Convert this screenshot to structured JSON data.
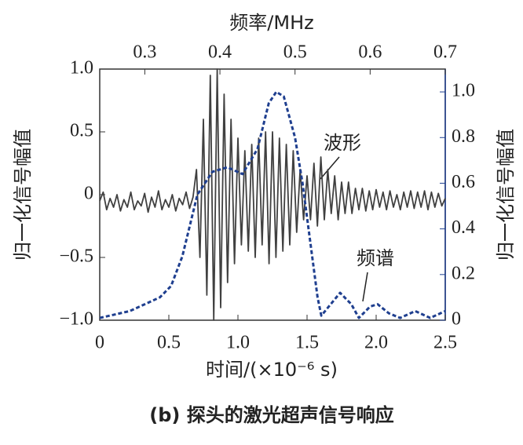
{
  "chart_data": {
    "type": "line",
    "caption": "(b) 探头的激光超声信号响应",
    "xlabel": "时间/(×10⁻⁶ s)",
    "x2label": "频率/MHz",
    "ylabel": "归一化信号幅值",
    "y2label": "归一化信号幅值",
    "xlim": [
      0,
      2.5
    ],
    "xticks": [
      0,
      0.5,
      {
        "value": 1,
        "label": "1.0"
      },
      1.5,
      {
        "value": 2,
        "label": "2.0"
      },
      2.5
    ],
    "x2lim": [
      0.24,
      0.7
    ],
    "x2ticks": [
      0.3,
      0.4,
      0.5,
      0.6,
      0.7
    ],
    "ylim": [
      -1,
      1
    ],
    "yticks": [
      {
        "value": -1,
        "label": "−1.0"
      },
      {
        "value": -0.5,
        "label": "−0.5"
      },
      0,
      0.5,
      {
        "value": 1,
        "label": "1.0"
      }
    ],
    "y2lim": [
      0,
      1.1
    ],
    "y2ticks": [
      0,
      0.2,
      0.4,
      0.6,
      0.8,
      {
        "value": 1,
        "label": "1.0"
      }
    ],
    "series": [
      {
        "name": "波形",
        "color": "#404040",
        "dashed": false,
        "x": [
          0,
          0.025,
          0.05,
          0.075,
          0.1,
          0.125,
          0.15,
          0.175,
          0.2,
          0.225,
          0.25,
          0.275,
          0.3,
          0.325,
          0.35,
          0.375,
          0.4,
          0.425,
          0.45,
          0.475,
          0.5,
          0.525,
          0.55,
          0.575,
          0.6,
          0.625,
          0.65,
          0.675,
          0.7,
          0.725,
          0.75,
          0.775,
          0.8,
          0.825,
          0.85,
          0.875,
          0.9,
          0.925,
          0.95,
          0.975,
          1.0,
          1.025,
          1.05,
          1.075,
          1.1,
          1.125,
          1.15,
          1.175,
          1.2,
          1.225,
          1.25,
          1.275,
          1.3,
          1.325,
          1.35,
          1.375,
          1.4,
          1.425,
          1.45,
          1.475,
          1.5,
          1.525,
          1.55,
          1.575,
          1.6,
          1.625,
          1.65,
          1.675,
          1.7,
          1.725,
          1.75,
          1.775,
          1.8,
          1.825,
          1.85,
          1.875,
          1.9,
          1.925,
          1.95,
          1.975,
          2.0,
          2.025,
          2.05,
          2.075,
          2.1,
          2.125,
          2.15,
          2.175,
          2.2,
          2.225,
          2.25,
          2.275,
          2.3,
          2.325,
          2.35,
          2.375,
          2.4,
          2.425,
          2.45,
          2.475,
          2.5
        ],
        "values": [
          -0.05,
          0.02,
          -0.12,
          -0.03,
          -0.1,
          0.0,
          -0.13,
          -0.04,
          -0.1,
          0.02,
          -0.12,
          -0.05,
          -0.09,
          0.01,
          -0.14,
          -0.02,
          -0.1,
          0.03,
          -0.12,
          -0.04,
          -0.1,
          0.0,
          -0.13,
          -0.03,
          -0.08,
          0.02,
          -0.11,
          -0.02,
          0.2,
          -0.5,
          0.6,
          -0.8,
          0.95,
          -1.0,
          1.0,
          -0.9,
          0.8,
          -0.7,
          0.6,
          -0.55,
          0.45,
          -0.4,
          0.35,
          -0.45,
          0.4,
          -0.5,
          0.45,
          -0.4,
          0.5,
          -0.55,
          0.5,
          -0.5,
          0.45,
          -0.45,
          0.4,
          -0.4,
          0.35,
          -0.3,
          0.2,
          -0.2,
          0.15,
          -0.2,
          0.25,
          -0.25,
          0.3,
          -0.2,
          0.2,
          -0.15,
          0.15,
          -0.2,
          0.1,
          -0.15,
          0.1,
          -0.15,
          0.05,
          -0.12,
          0.05,
          -0.13,
          0.03,
          -0.12,
          0.04,
          -0.1,
          0.02,
          -0.12,
          0.03,
          -0.1,
          0.0,
          -0.12,
          0.02,
          -0.1,
          0.03,
          -0.11,
          0.02,
          -0.1,
          0.03,
          -0.12,
          0.02,
          -0.1,
          0.01,
          -0.09,
          -0.03
        ]
      },
      {
        "name": "频谱",
        "color": "#1f3f8f",
        "dashed": true,
        "axis": "y2",
        "xaxis": "x2",
        "x": [
          0.24,
          0.28,
          0.32,
          0.335,
          0.35,
          0.37,
          0.39,
          0.41,
          0.43,
          0.45,
          0.465,
          0.475,
          0.485,
          0.5,
          0.51,
          0.52,
          0.53,
          0.535,
          0.55,
          0.56,
          0.575,
          0.585,
          0.6,
          0.61,
          0.625,
          0.64,
          0.66,
          0.68,
          0.7
        ],
        "values": [
          0.01,
          0.04,
          0.1,
          0.15,
          0.28,
          0.55,
          0.65,
          0.67,
          0.64,
          0.75,
          0.95,
          1.0,
          0.98,
          0.8,
          0.6,
          0.35,
          0.1,
          0.02,
          0.08,
          0.12,
          0.07,
          0.01,
          0.06,
          0.07,
          0.03,
          0.01,
          0.04,
          0.01,
          0.04
        ]
      }
    ]
  }
}
